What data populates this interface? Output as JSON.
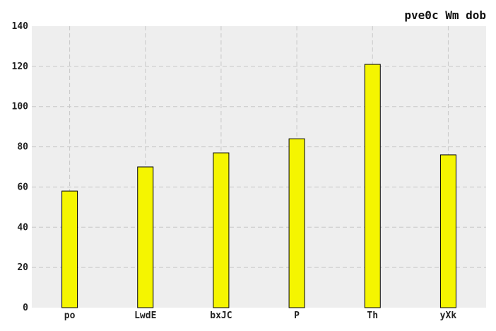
{
  "chart_data": {
    "type": "bar",
    "title": "pve0c Wm dob",
    "xlabel": "",
    "ylabel": "",
    "categories": [
      "po",
      "LwdE",
      "bxJC",
      "P",
      "Th",
      "yXk"
    ],
    "values": [
      58,
      70,
      77,
      84,
      121,
      76
    ],
    "ylim": [
      0,
      140
    ],
    "yticks": [
      "0",
      "20",
      "40",
      "60",
      "80",
      "100",
      "120",
      "140"
    ],
    "grid": true,
    "legend": "none",
    "colors": {
      "bar_fill": "#f5f500",
      "bar_edge": "#000000",
      "plot_background": "#eeeeee",
      "grid": "#c8c8c8"
    }
  }
}
